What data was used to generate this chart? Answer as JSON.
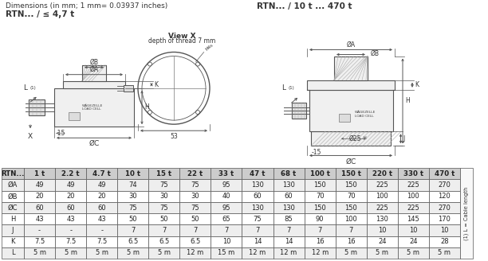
{
  "title_left": "Dimensions (in mm; 1 mm= 0.03937 inches)",
  "title_right": "RTN... / 10 t ... 470 t",
  "subtitle_left": "RTN... / ≤ 4,7 t",
  "view_title": "View X",
  "view_sub": "depth of thread 7 mm",
  "table_headers": [
    "RTN...",
    "1 t",
    "2.2 t",
    "4.7 t",
    "10 t",
    "15 t",
    "22 t",
    "33 t",
    "47 t",
    "68 t",
    "100 t",
    "150 t",
    "220 t",
    "330 t",
    "470 t"
  ],
  "table_rows": [
    [
      "ØA",
      "49",
      "49",
      "49",
      "74",
      "75",
      "75",
      "95",
      "130",
      "130",
      "150",
      "150",
      "225",
      "225",
      "270"
    ],
    [
      "ØB",
      "20",
      "20",
      "20",
      "30",
      "30",
      "30",
      "40",
      "60",
      "60",
      "70",
      "70",
      "100",
      "100",
      "120"
    ],
    [
      "ØC",
      "60",
      "60",
      "60",
      "75",
      "75",
      "75",
      "95",
      "130",
      "130",
      "150",
      "150",
      "225",
      "225",
      "270"
    ],
    [
      "H",
      "43",
      "43",
      "43",
      "50",
      "50",
      "50",
      "65",
      "75",
      "85",
      "90",
      "100",
      "130",
      "145",
      "170"
    ],
    [
      "J",
      "-",
      "-",
      "-",
      "7",
      "7",
      "7",
      "7",
      "7",
      "7",
      "7",
      "7",
      "10",
      "10",
      "10"
    ],
    [
      "K",
      "7.5",
      "7.5",
      "7.5",
      "6.5",
      "6.5",
      "6.5",
      "10",
      "14",
      "14",
      "16",
      "16",
      "24",
      "24",
      "28"
    ],
    [
      "L",
      "5 m",
      "5 m",
      "5 m",
      "5 m",
      "5 m",
      "12 m",
      "15 m",
      "12 m",
      "12 m",
      "12 m",
      "5 m",
      "5 m",
      "5 m",
      "5 m"
    ]
  ],
  "side_note": "(1) L = Cable length",
  "bg_color": "#ffffff",
  "line_color": "#555555",
  "text_color": "#333333",
  "hatch_color": "#888888",
  "table_header_bg": "#cccccc",
  "table_row0_bg": "#eeeeee",
  "table_row1_bg": "#ffffff"
}
